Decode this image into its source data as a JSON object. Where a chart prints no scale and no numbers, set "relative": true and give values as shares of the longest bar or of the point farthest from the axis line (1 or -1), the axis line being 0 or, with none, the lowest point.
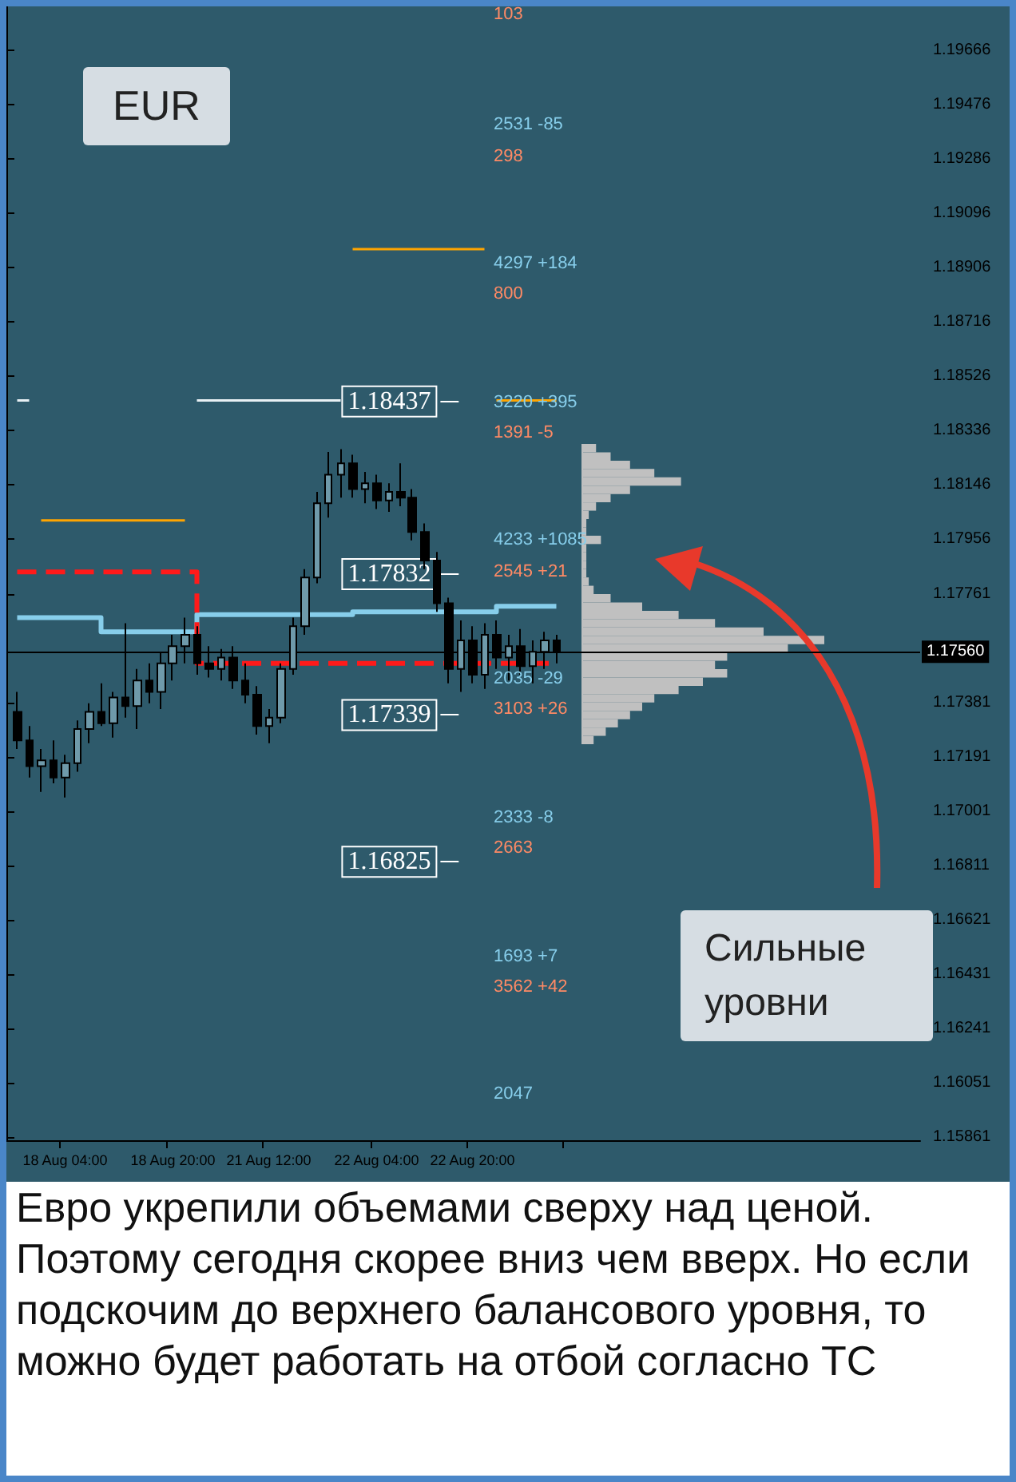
{
  "chart_data": [
    {
      "type": "candlestick",
      "title": "EUR",
      "categories": [
        null,
        null,
        null,
        null,
        "18 Aug 04:00",
        null,
        null,
        null,
        null,
        null,
        null,
        null,
        null,
        "18 Aug 20:00",
        null,
        null,
        null,
        null,
        null,
        null,
        null,
        "21 Aug 12:00",
        null,
        null,
        null,
        null,
        null,
        null,
        null,
        null,
        "22 Aug 04:00",
        null,
        null,
        null,
        null,
        null,
        null,
        null,
        "22 Aug 20:00",
        null,
        null,
        null,
        null,
        null,
        null,
        null
      ],
      "ohlc": [
        [
          1.1735,
          1.1742,
          1.1722,
          1.1725
        ],
        [
          1.1725,
          1.173,
          1.1712,
          1.1716
        ],
        [
          1.1716,
          1.1722,
          1.1707,
          1.1718
        ],
        [
          1.1718,
          1.1725,
          1.171,
          1.1712
        ],
        [
          1.1712,
          1.172,
          1.1705,
          1.1717
        ],
        [
          1.1717,
          1.1732,
          1.1714,
          1.1729
        ],
        [
          1.1729,
          1.1738,
          1.1724,
          1.1735
        ],
        [
          1.1735,
          1.1745,
          1.173,
          1.1731
        ],
        [
          1.1731,
          1.1742,
          1.1726,
          1.174
        ],
        [
          1.174,
          1.1766,
          1.1733,
          1.1737
        ],
        [
          1.1737,
          1.175,
          1.1729,
          1.1746
        ],
        [
          1.1746,
          1.1752,
          1.1738,
          1.1742
        ],
        [
          1.1742,
          1.1756,
          1.1736,
          1.1752
        ],
        [
          1.1752,
          1.1762,
          1.1746,
          1.1758
        ],
        [
          1.1758,
          1.1768,
          1.1752,
          1.1762
        ],
        [
          1.1762,
          1.1765,
          1.1748,
          1.1752
        ],
        [
          1.1752,
          1.1758,
          1.1747,
          1.175
        ],
        [
          1.175,
          1.1757,
          1.1746,
          1.1754
        ],
        [
          1.1754,
          1.1758,
          1.1743,
          1.1746
        ],
        [
          1.1746,
          1.1752,
          1.1738,
          1.1741
        ],
        [
          1.1741,
          1.1744,
          1.1727,
          1.173
        ],
        [
          1.173,
          1.1736,
          1.1724,
          1.1733
        ],
        [
          1.1733,
          1.1752,
          1.1731,
          1.175
        ],
        [
          1.175,
          1.1768,
          1.1748,
          1.1765
        ],
        [
          1.1765,
          1.1785,
          1.1762,
          1.1782
        ],
        [
          1.1782,
          1.1812,
          1.178,
          1.1808
        ],
        [
          1.1808,
          1.1826,
          1.1803,
          1.1818
        ],
        [
          1.1818,
          1.1827,
          1.181,
          1.1822
        ],
        [
          1.1822,
          1.1825,
          1.181,
          1.1813
        ],
        [
          1.1813,
          1.1819,
          1.1808,
          1.1815
        ],
        [
          1.1815,
          1.1818,
          1.1806,
          1.1809
        ],
        [
          1.1809,
          1.1815,
          1.1805,
          1.1812
        ],
        [
          1.1812,
          1.1822,
          1.1807,
          1.181
        ],
        [
          1.181,
          1.1813,
          1.1795,
          1.1798
        ],
        [
          1.1798,
          1.1801,
          1.1785,
          1.1788
        ],
        [
          1.1788,
          1.1791,
          1.177,
          1.1773
        ],
        [
          1.1773,
          1.1775,
          1.1745,
          1.175
        ],
        [
          1.175,
          1.1767,
          1.1742,
          1.176
        ],
        [
          1.176,
          1.1765,
          1.1745,
          1.1748
        ],
        [
          1.1748,
          1.1766,
          1.1743,
          1.1762
        ],
        [
          1.1762,
          1.1767,
          1.175,
          1.1754
        ],
        [
          1.1754,
          1.1762,
          1.1746,
          1.1758
        ],
        [
          1.1758,
          1.1764,
          1.1748,
          1.1751
        ],
        [
          1.1751,
          1.176,
          1.1745,
          1.1756
        ],
        [
          1.1756,
          1.1763,
          1.175,
          1.176
        ],
        [
          1.176,
          1.1762,
          1.1752,
          1.1756
        ]
      ],
      "series": [
        {
          "type": "step",
          "color": "#87ceeb",
          "values": [
            1.1768,
            1.1768,
            1.1768,
            1.1768,
            1.1768,
            1.1768,
            1.1768,
            1.1763,
            1.1763,
            1.1763,
            1.1763,
            1.1763,
            1.1763,
            1.1763,
            1.1763,
            1.1769,
            1.1769,
            1.1769,
            1.1769,
            1.1769,
            1.1769,
            1.1769,
            1.1769,
            1.1769,
            1.1769,
            1.1769,
            1.1769,
            1.1769,
            1.177,
            1.177,
            1.177,
            1.177,
            1.177,
            1.177,
            1.177,
            1.177,
            1.177,
            1.177,
            1.177,
            1.177,
            1.1772,
            1.1772,
            1.1772,
            1.1772,
            1.1772,
            1.1772
          ]
        },
        {
          "type": "step",
          "color": "#ff1a1a",
          "line_style": "dashed",
          "values": [
            1.1784,
            1.1784,
            1.1784,
            1.1784,
            1.1784,
            1.1784,
            1.1784,
            1.1784,
            1.1784,
            1.1784,
            1.1784,
            1.1784,
            1.1784,
            1.1784,
            1.1784,
            1.1752,
            1.1752,
            1.1752,
            1.1752,
            1.1752,
            1.1752,
            1.1752,
            1.1752,
            1.1752,
            1.1752,
            1.1752,
            1.1752,
            1.1752,
            1.1752,
            1.1752,
            1.1752,
            1.1752,
            1.1752,
            1.1752,
            1.1752,
            1.1752,
            1.1752,
            1.1752,
            1.1752,
            1.1752,
            1.1752,
            1.1752,
            1.1752,
            1.1752,
            1.1752,
            1.1752
          ]
        },
        {
          "type": "line",
          "color": "#ffa500",
          "values": [
            null,
            null,
            1.1802,
            1.1802,
            1.1802,
            1.1802,
            1.1802,
            1.1802,
            1.1802,
            1.1802,
            1.1802,
            1.1802,
            1.1802,
            1.1802,
            1.1802,
            null,
            null,
            null,
            null,
            null,
            null,
            null,
            null,
            null,
            null,
            null,
            null,
            null,
            null,
            null,
            null,
            null,
            null,
            null,
            null,
            null,
            null,
            null,
            null,
            null,
            null,
            null,
            null,
            null,
            null,
            null
          ]
        },
        {
          "type": "line",
          "color": "#ffa500",
          "values": [
            null,
            null,
            null,
            null,
            null,
            null,
            null,
            null,
            null,
            null,
            null,
            null,
            null,
            null,
            null,
            null,
            null,
            null,
            null,
            null,
            null,
            null,
            null,
            null,
            null,
            null,
            null,
            null,
            1.1897,
            1.1897,
            1.1897,
            1.1897,
            1.1897,
            1.1897,
            1.1897,
            1.1897,
            1.1897,
            1.1897,
            1.1897,
            1.1897,
            null,
            null,
            null,
            null,
            null,
            null
          ]
        },
        {
          "type": "line",
          "color": "#ffa500",
          "values": [
            null,
            null,
            null,
            null,
            null,
            null,
            null,
            null,
            null,
            null,
            null,
            null,
            null,
            null,
            null,
            null,
            null,
            null,
            null,
            null,
            null,
            null,
            null,
            null,
            null,
            null,
            null,
            null,
            null,
            null,
            null,
            null,
            null,
            null,
            null,
            null,
            null,
            null,
            null,
            null,
            1.1844,
            1.1844,
            1.1844,
            1.1844,
            1.1844,
            1.1844
          ]
        },
        {
          "type": "line",
          "color": "#e8f0f4",
          "values": [
            1.1844,
            1.1844,
            null,
            null,
            null,
            null,
            null,
            null,
            null,
            null,
            null,
            null,
            null,
            null,
            null,
            1.1844,
            1.1844,
            1.1844,
            1.1844,
            1.1844,
            1.1844,
            1.1844,
            1.1844,
            1.1844,
            1.1844,
            1.1844,
            1.1844,
            1.1844,
            null,
            null,
            null,
            null,
            null,
            null,
            null,
            null,
            null,
            null,
            null,
            null,
            null,
            null,
            null,
            null,
            null,
            null
          ]
        }
      ],
      "ylim": [
        1.1585,
        1.1982
      ],
      "yticks": [
        1.19666,
        1.19476,
        1.19286,
        1.19096,
        1.18906,
        1.18716,
        1.18526,
        1.18336,
        1.18146,
        1.17956,
        1.17761,
        1.17381,
        1.17191,
        1.17001,
        1.16811,
        1.16621,
        1.16431,
        1.16241,
        1.16051,
        1.15861
      ],
      "ref_lines": [
        {
          "axis": "y",
          "value": 1.18437,
          "label": "1.18437"
        },
        {
          "axis": "y",
          "value": 1.17832,
          "label": "1.17832"
        },
        {
          "axis": "y",
          "value": 1.17339,
          "label": "1.17339"
        },
        {
          "axis": "y",
          "value": 1.16825,
          "label": "1.16825"
        },
        {
          "axis": "y",
          "value": 1.1756,
          "label": "1.17560",
          "color": "#000000"
        }
      ],
      "annotations": [
        "103",
        "2531 -85",
        "298",
        "4297 +184",
        "800",
        "3220 +395",
        "1391 -5",
        "4233 +1085",
        "2545 +21",
        "2035 -29",
        "3103 +26",
        "2333 -8",
        "2663",
        "1693 +7",
        "3562 +42",
        "2047",
        "Сильные уровни",
        "Евро укрепили объемами сверху над ценой. Поэтому сегодня скорее вниз чем вверх. Но если подскочим до верхнего балансового уровня, то можно будет работать на отбой согласно ТС"
      ],
      "grid": false
    },
    {
      "type": "bar",
      "orientation": "horizontal",
      "relative": true,
      "color": "#c0c0c0",
      "categories": [
        null,
        null,
        null,
        null,
        null,
        null,
        null,
        null,
        null,
        null,
        null,
        null,
        null,
        null,
        null,
        null,
        null,
        null,
        null,
        null,
        null,
        null,
        null,
        null,
        null,
        null,
        null,
        null,
        null,
        null,
        null,
        null,
        null,
        null,
        null,
        null
      ],
      "values": [
        0.06,
        0.12,
        0.2,
        0.3,
        0.41,
        0.2,
        0.12,
        0.06,
        0.03,
        0.02,
        0.02,
        0.08,
        0.02,
        0.02,
        0.02,
        0.02,
        0.03,
        0.05,
        0.12,
        0.25,
        0.4,
        0.55,
        0.75,
        1,
        0.85,
        0.6,
        0.55,
        0.6,
        0.5,
        0.4,
        0.3,
        0.25,
        0.2,
        0.15,
        0.1,
        0.05
      ],
      "grid": false
    }
  ]
}
